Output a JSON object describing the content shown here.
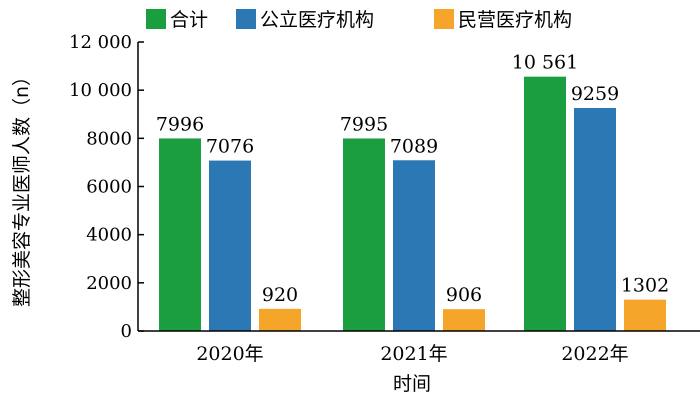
{
  "chart_data": {
    "type": "bar",
    "title": "",
    "xlabel": "时间",
    "ylabel": "整形美容专业医师人数（n）",
    "categories": [
      "2020年",
      "2021年",
      "2022年"
    ],
    "series": [
      {
        "name": "合计",
        "values": [
          7996,
          7995,
          10561
        ],
        "labels": [
          "7996",
          "7995",
          "10 561"
        ],
        "color": "#1a9e3f"
      },
      {
        "name": "公立医疗机构",
        "values": [
          7076,
          7089,
          9259
        ],
        "labels": [
          "7076",
          "7089",
          "9259"
        ],
        "color": "#2b78b5"
      },
      {
        "name": "民营医疗机构",
        "values": [
          920,
          906,
          1302
        ],
        "labels": [
          "920",
          "906",
          "1302"
        ],
        "color": "#f5a52a"
      }
    ],
    "ylim": [
      0,
      12000
    ],
    "yticks": [
      0,
      2000,
      4000,
      6000,
      8000,
      10000,
      12000
    ],
    "ytick_labels": [
      "0",
      "2000",
      "4000",
      "6000",
      "8000",
      "10 000",
      "12 000"
    ],
    "grid": false,
    "legend_position": "top"
  }
}
